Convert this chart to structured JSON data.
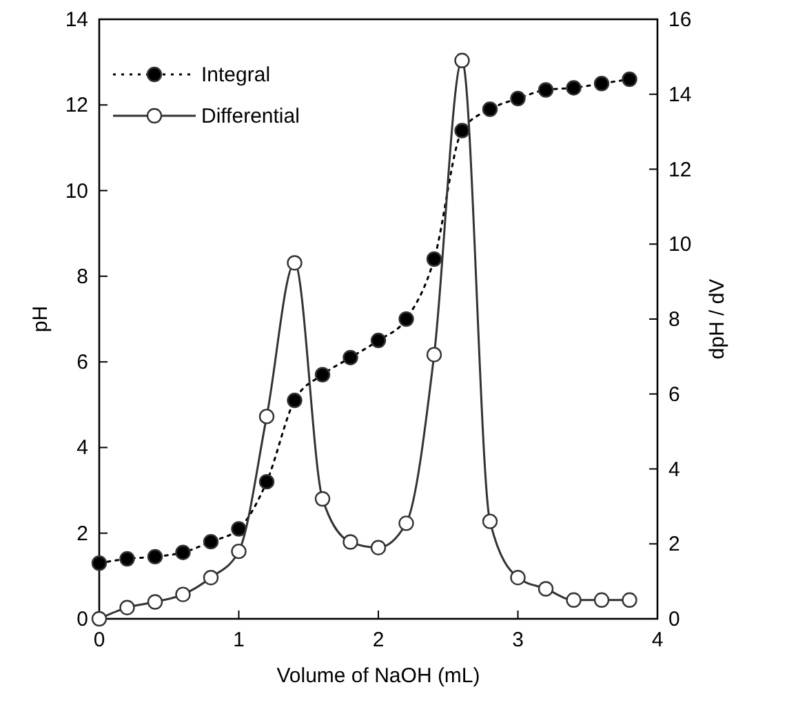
{
  "chart_data": {
    "type": "line",
    "xlabel": "Volume of NaOH (mL)",
    "ylabel": "pH",
    "y2label": "dpH / dV",
    "x": [
      0,
      0.2,
      0.4,
      0.6,
      0.8,
      1.0,
      1.2,
      1.4,
      1.6,
      1.8,
      2.0,
      2.2,
      2.4,
      2.6,
      2.8,
      3.0,
      3.2,
      3.4,
      3.6,
      3.8
    ],
    "series": [
      {
        "name": "Integral",
        "color": "#000000",
        "marker": "circle",
        "line_style": "dotted",
        "values": [
          1.3,
          1.4,
          1.45,
          1.55,
          1.8,
          2.1,
          3.2,
          5.1,
          5.7,
          6.1,
          6.5,
          7.0,
          8.4,
          11.4,
          11.9,
          12.15,
          12.35,
          12.4,
          12.5,
          12.6
        ]
      },
      {
        "name": "Differential",
        "color": "#ffffff",
        "marker": "circle",
        "line_style": "solid",
        "axis": "y2",
        "values": [
          0,
          0.3,
          0.45,
          0.65,
          1.1,
          1.8,
          5.4,
          9.5,
          3.2,
          2.05,
          1.9,
          2.55,
          7.05,
          14.9,
          2.6,
          1.1,
          0.8,
          0.5,
          0.5,
          0.5
        ]
      }
    ],
    "xlim": [
      0,
      4
    ],
    "xticks": [
      0,
      1,
      2,
      3,
      4
    ],
    "ylim": [
      0,
      14
    ],
    "yticks": [
      0,
      2,
      4,
      6,
      8,
      10,
      12,
      14
    ],
    "y2lim": [
      0,
      16
    ],
    "y2ticks": [
      0,
      2,
      4,
      6,
      8,
      10,
      12,
      14,
      16
    ],
    "grid": false,
    "legend": "top left"
  }
}
